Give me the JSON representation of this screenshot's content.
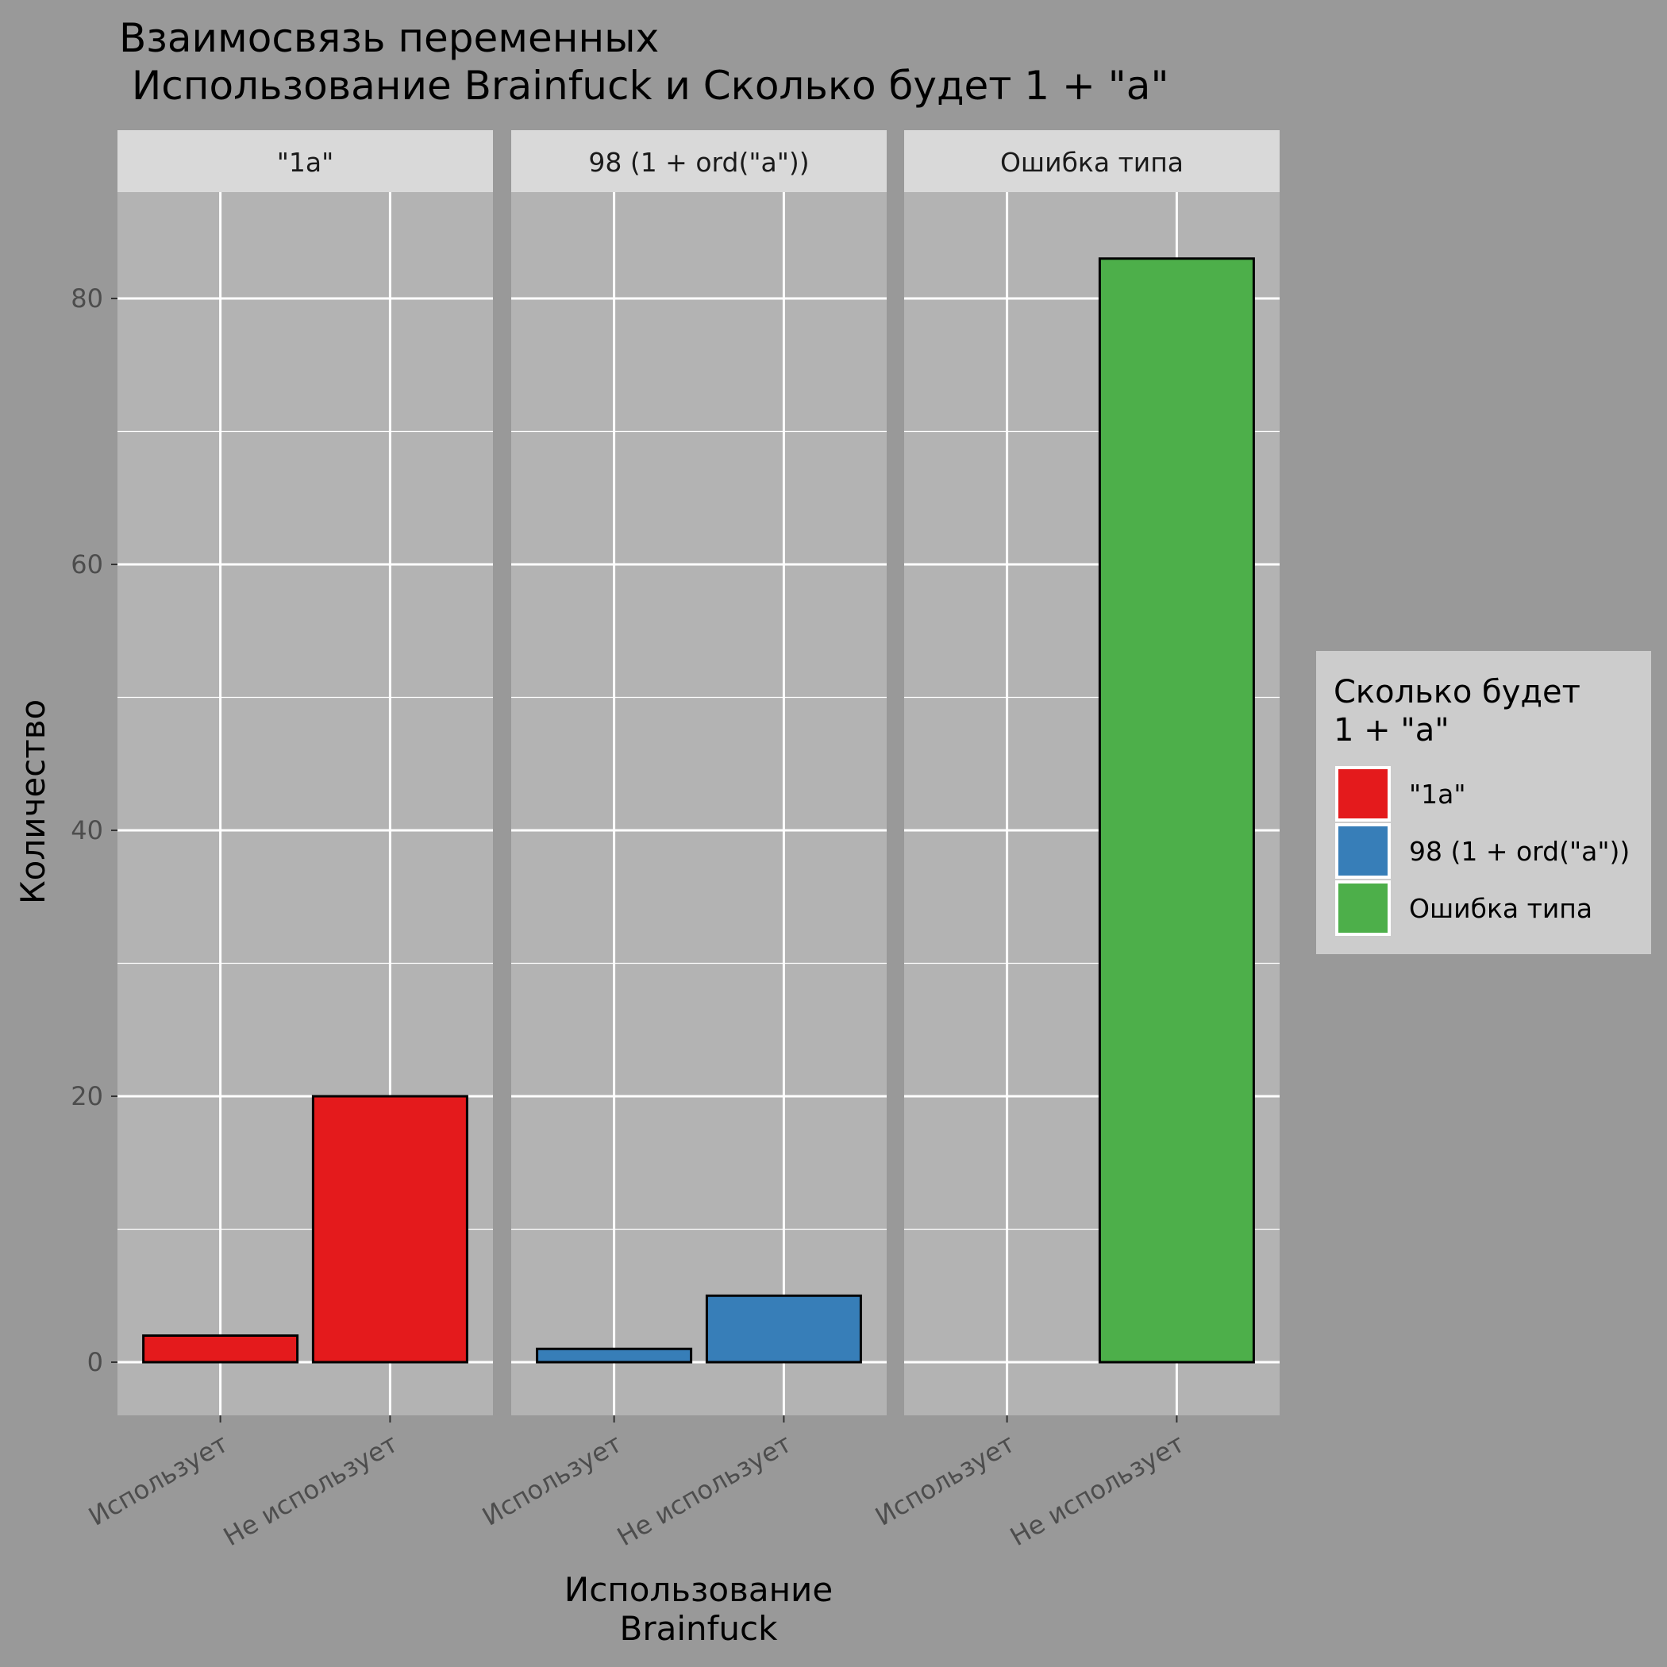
{
  "chart_data": {
    "type": "bar",
    "title_lines": [
      "Взаимосвязь переменных",
      " Использование Brainfuck и Сколько будет 1 + \"a\""
    ],
    "xlabel_lines": [
      "Использование",
      "Brainfuck"
    ],
    "ylabel": "Количество",
    "ylim": [
      -4,
      88
    ],
    "yticks": [
      0,
      20,
      40,
      60,
      80
    ],
    "grid": true,
    "categories": [
      "Использует",
      "Не использует"
    ],
    "facets": [
      {
        "label": "\"1a\"",
        "values": [
          2,
          20
        ],
        "color": "#E41A1C"
      },
      {
        "label": "98 (1 + ord(\"a\"))",
        "values": [
          1,
          5
        ],
        "color": "#377EB8"
      },
      {
        "label": "Ошибка типа",
        "values": [
          0,
          83
        ],
        "color": "#4DAF4A"
      }
    ],
    "legend": {
      "title_lines": [
        "Сколько будет",
        "1 + \"a\""
      ],
      "position": "right",
      "items": [
        {
          "label": "\"1a\"",
          "color": "#E41A1C"
        },
        {
          "label": "98 (1 + ord(\"a\"))",
          "color": "#377EB8"
        },
        {
          "label": "Ошибка типа",
          "color": "#4DAF4A"
        }
      ]
    }
  }
}
